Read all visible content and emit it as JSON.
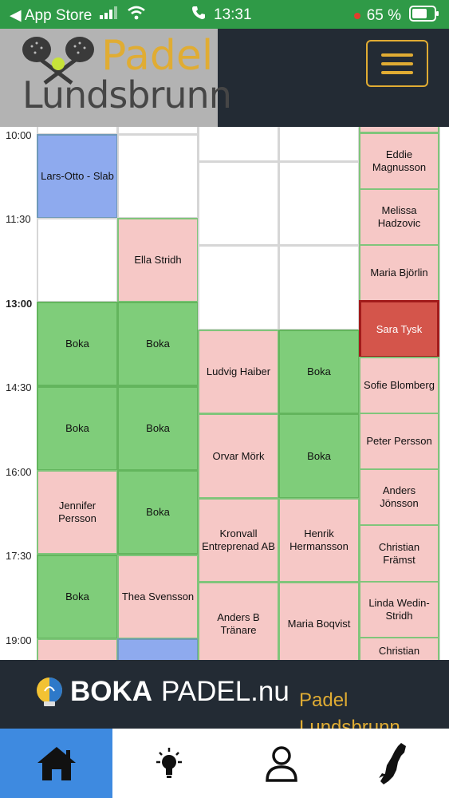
{
  "status_bar": {
    "back_app": "◀ App Store",
    "time": "13:31",
    "battery": "65 %"
  },
  "header": {
    "logo_line1": "Padel",
    "logo_line2": "Lundsbrunn"
  },
  "calendar": {
    "times": [
      "10:00",
      "11:30",
      "13:00",
      "14:30",
      "16:00",
      "17:30",
      "19:00"
    ],
    "slots": {
      "c1_r1": "Lars-Otto - Slab",
      "c1_r3": "Boka",
      "c1_r4": "Boka",
      "c1_r5": "Jennifer Persson",
      "c1_r6": "Boka",
      "c2_r2": "Ella Stridh",
      "c2_r3": "Boka",
      "c2_r4": "Boka",
      "c2_r5": "Boka",
      "c2_r6": "Thea Svensson",
      "c3_a": "Ludvig Haiber",
      "c3_b": "Orvar Mörk",
      "c3_c": "Kronvall Entreprenad AB",
      "c3_d": "Anders B Tränare",
      "c4_a": "Boka",
      "c4_b": "Boka",
      "c4_c": "Henrik Hermansson",
      "c4_d": "Maria Boqvist",
      "c5_1": "Eddie Magnusson",
      "c5_2": "Melissa Hadzovic",
      "c5_3": "Maria Björlin",
      "c5_4": "Sara Tysk",
      "c5_5": "Sofie Blomberg",
      "c5_6": "Peter Persson",
      "c5_7": "Anders Jönsson",
      "c5_8": "Christian Främst",
      "c5_9": "Linda Wedin-Stridh",
      "c5_10": "Christian"
    }
  },
  "banner": {
    "brand_boka": "BOKA",
    "brand_padel": "PADEL.nu",
    "subtitle": "Padel Lundsbrunn"
  },
  "bottom_nav": {
    "items": [
      "home-icon",
      "lightbulb-icon",
      "user-icon",
      "map-icon"
    ]
  },
  "colors": {
    "status_bar": "#2f9a47",
    "header_bg": "#232b34",
    "accent": "#e0ac33",
    "booked": "#f6c8c6",
    "free": "#7fcd7a",
    "blue": "#8eaaee",
    "selected": "#d4554b",
    "nav_active": "#3e8ae0"
  }
}
